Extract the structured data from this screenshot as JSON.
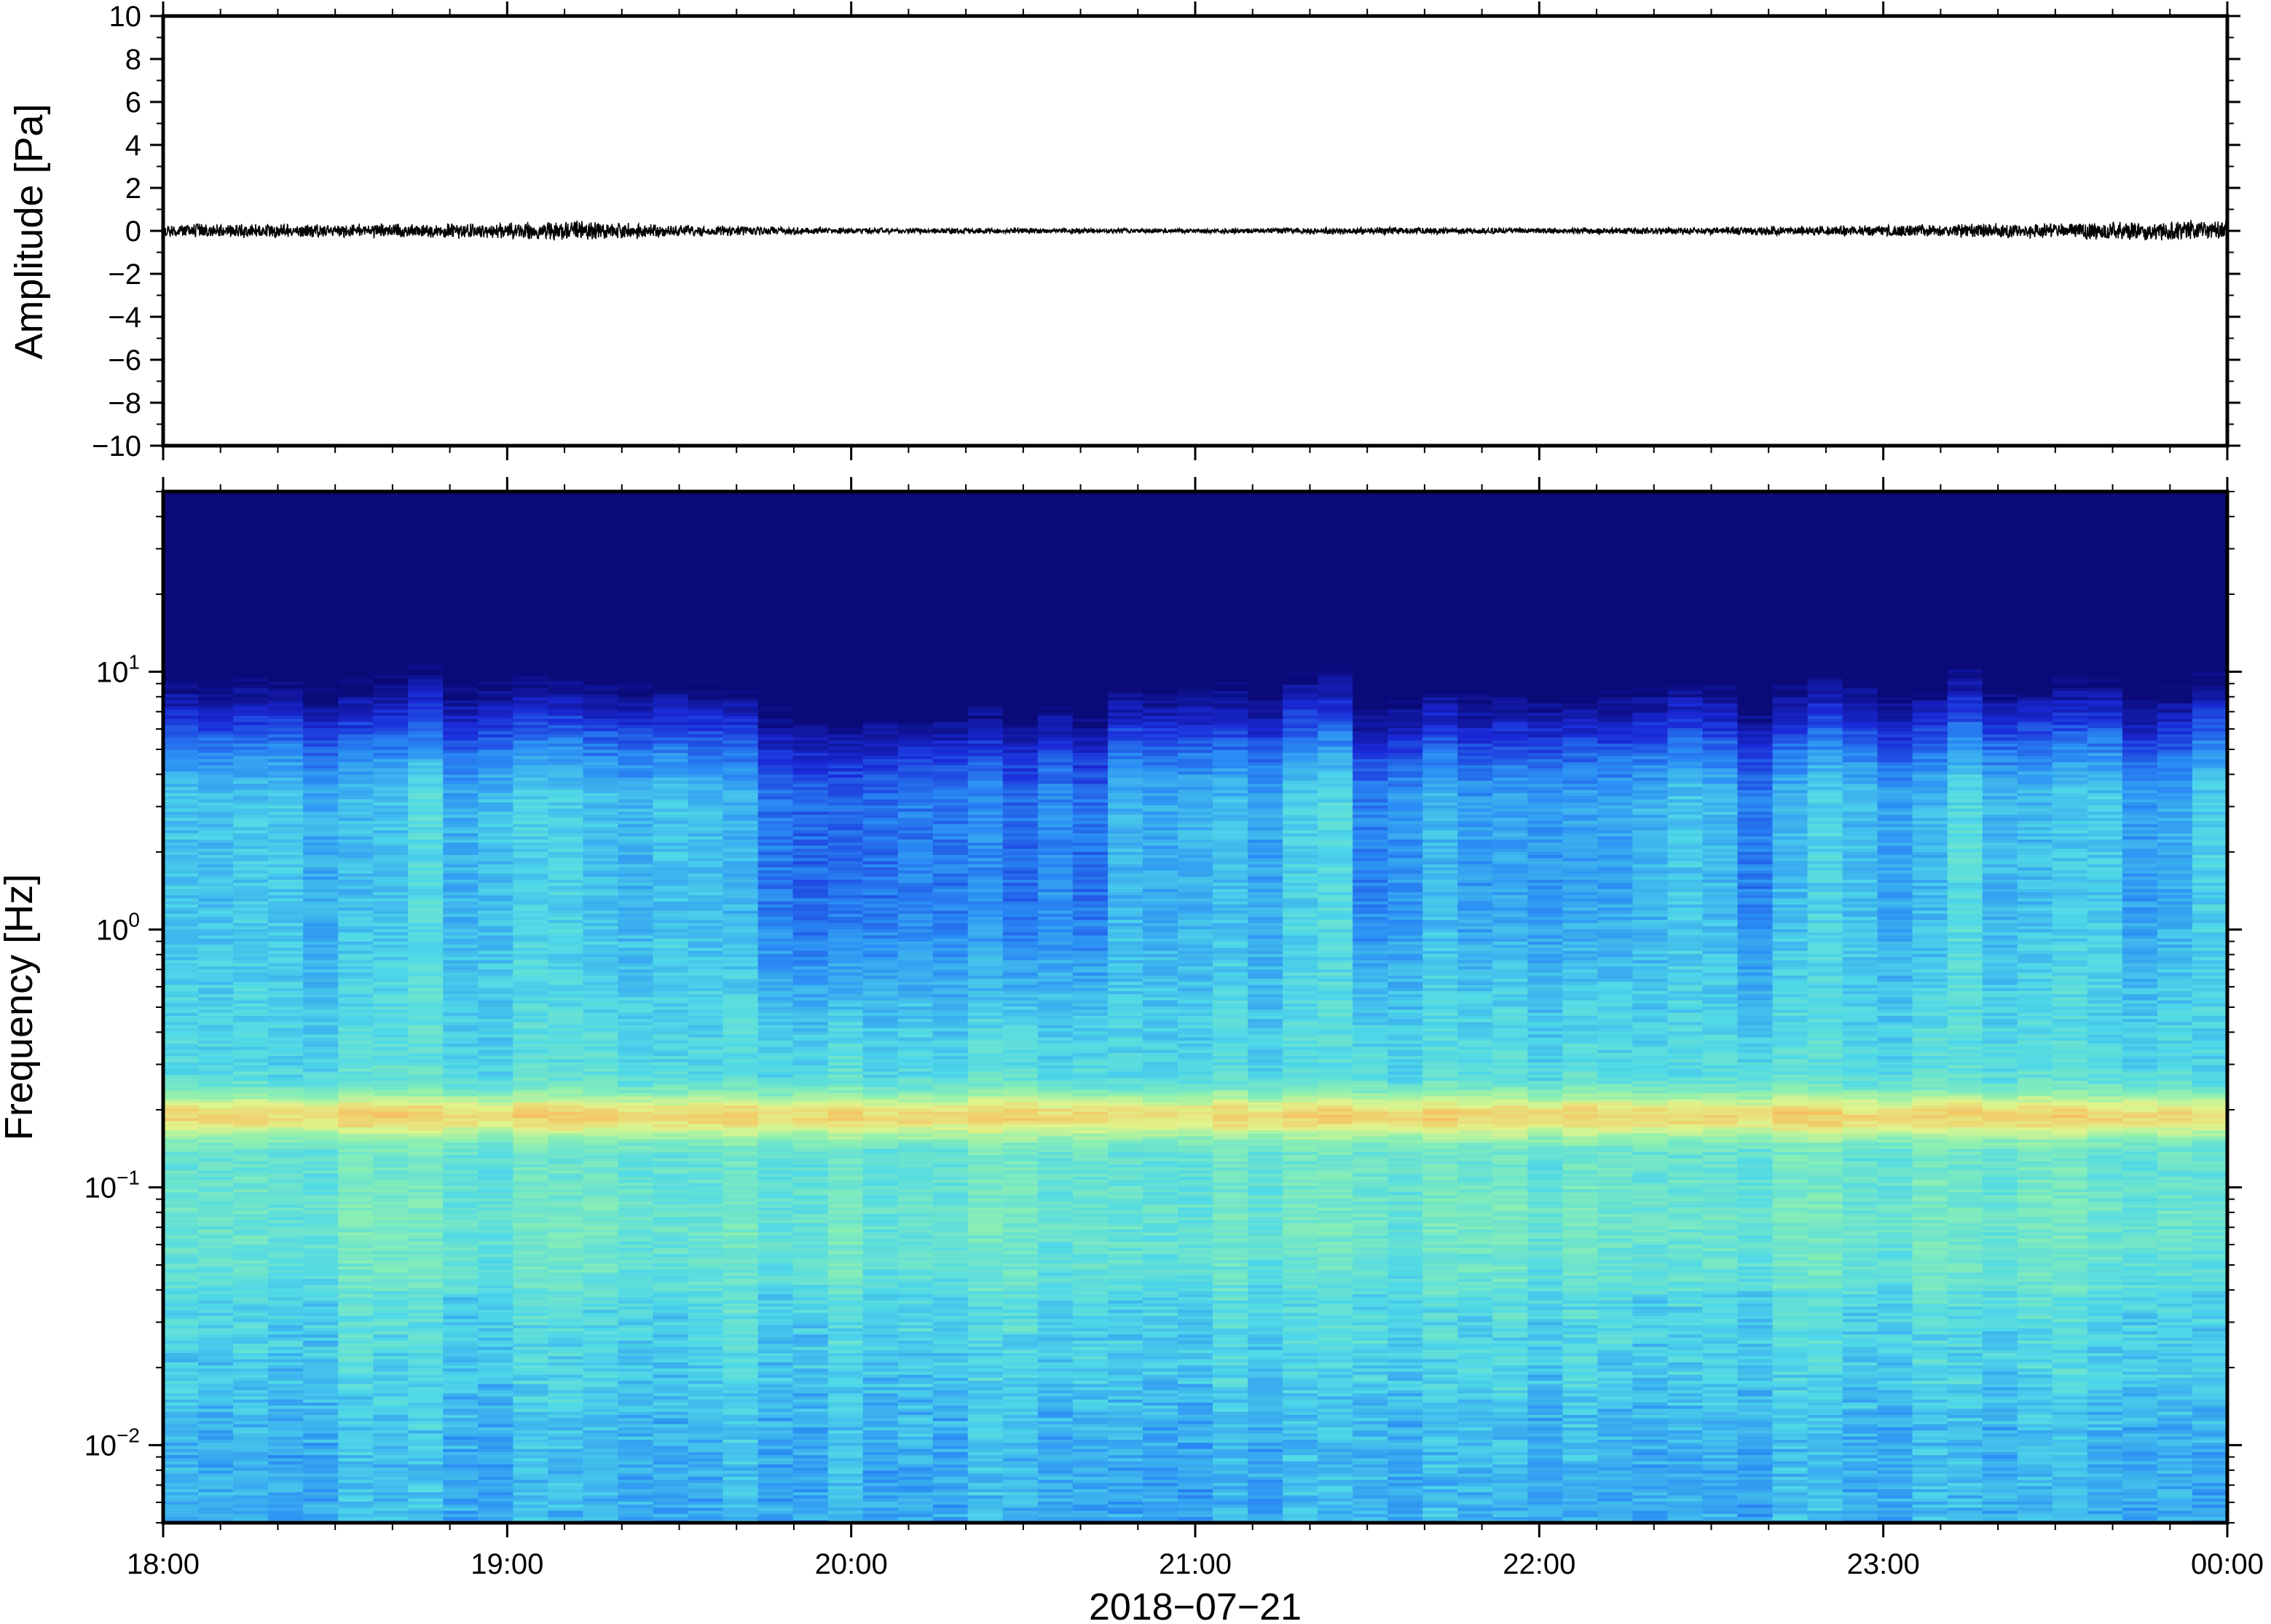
{
  "chart_data": [
    {
      "type": "line",
      "panel": "waveform",
      "title": "",
      "ylabel": "Amplitude [Pa]",
      "ylim": [
        -10,
        10
      ],
      "yticks": [
        10,
        8,
        6,
        4,
        2,
        0,
        -2,
        -4,
        -6,
        -8,
        -10
      ],
      "ytick_labels": [
        "10",
        "8",
        "6",
        "4",
        "2",
        "0",
        "−2",
        "−4",
        "−6",
        "−8",
        "−10"
      ],
      "x_range_hours": [
        18,
        24
      ],
      "series": [
        {
          "trace_envelope": {
            "hours": [
              18.0,
              18.5,
              19.0,
              19.2,
              19.5,
              20.0,
              20.5,
              21.0,
              21.5,
              22.0,
              22.5,
              23.0,
              23.5,
              23.8,
              24.0
            ],
            "half_width_pa": [
              0.35,
              0.35,
              0.4,
              0.55,
              0.3,
              0.15,
              0.15,
              0.12,
              0.2,
              0.15,
              0.2,
              0.3,
              0.4,
              0.55,
              0.5
            ]
          }
        }
      ],
      "color": "#000000"
    },
    {
      "type": "heatmap",
      "panel": "spectrogram",
      "title": "",
      "ylabel": "Frequency [Hz]",
      "xlabel": "2018−07−21",
      "yscale": "log",
      "ylim": [
        0.005,
        50
      ],
      "yticks": [
        {
          "base": "10",
          "exp": "1"
        },
        {
          "base": "10",
          "exp": "0"
        },
        {
          "base": "10",
          "exp": "−1"
        },
        {
          "base": "10",
          "exp": "−2"
        }
      ],
      "x_tick_labels": [
        "18:00",
        "19:00",
        "20:00",
        "21:00",
        "22:00",
        "23:00",
        "00:00"
      ],
      "x_range_hours": [
        18,
        24
      ],
      "time_bins": 59,
      "colormap": [
        "#0a0a78",
        "#1a2ad8",
        "#2a8cf4",
        "#4fd8e8",
        "#8ef0b0",
        "#e0f48c",
        "#f6c060",
        "#f08a40"
      ],
      "features": {
        "peak_frequency_hz": 0.19,
        "peak_color": "#f08a40",
        "top_band_color": "#0a0a78",
        "low_frequency_color": "#2a9cf4"
      }
    }
  ]
}
